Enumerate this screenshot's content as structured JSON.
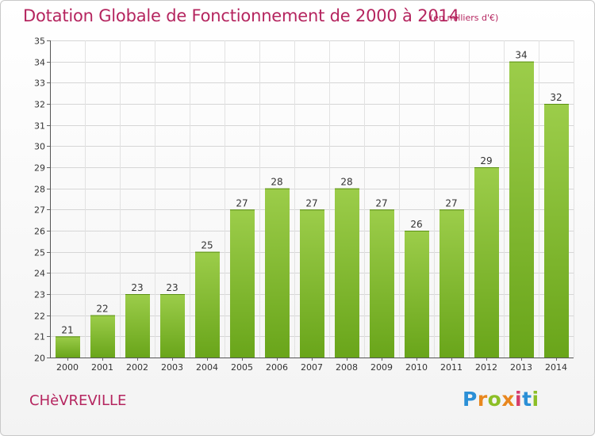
{
  "header": {
    "title": "Dotation Globale de Fonctionnement de 2000 à 2014",
    "unit": "(en milliers d'€)"
  },
  "footer": {
    "commune": "CHèVREVILLE",
    "logo_letters": [
      "P",
      "r",
      "o",
      "x",
      "i",
      "t",
      "i"
    ],
    "logo_colors": [
      "#2b8fd6",
      "#e8871e",
      "#8cbf26",
      "#e8871e",
      "#d63b6a",
      "#2b8fd6",
      "#8cbf26"
    ]
  },
  "chart_data": {
    "type": "bar",
    "categories": [
      "2000",
      "2001",
      "2002",
      "2003",
      "2004",
      "2005",
      "2006",
      "2007",
      "2008",
      "2009",
      "2010",
      "2011",
      "2012",
      "2013",
      "2014"
    ],
    "values": [
      21,
      22,
      23,
      23,
      25,
      27,
      28,
      27,
      28,
      27,
      26,
      27,
      29,
      34,
      32
    ],
    "ylim": [
      20,
      35
    ],
    "yticks": [
      20,
      21,
      22,
      23,
      24,
      25,
      26,
      27,
      28,
      29,
      30,
      31,
      32,
      33,
      34,
      35
    ],
    "grid": true,
    "bar_color_top": "#9ccd4a",
    "bar_color_bottom": "#69a51a",
    "xlabel": "",
    "ylabel": ""
  }
}
